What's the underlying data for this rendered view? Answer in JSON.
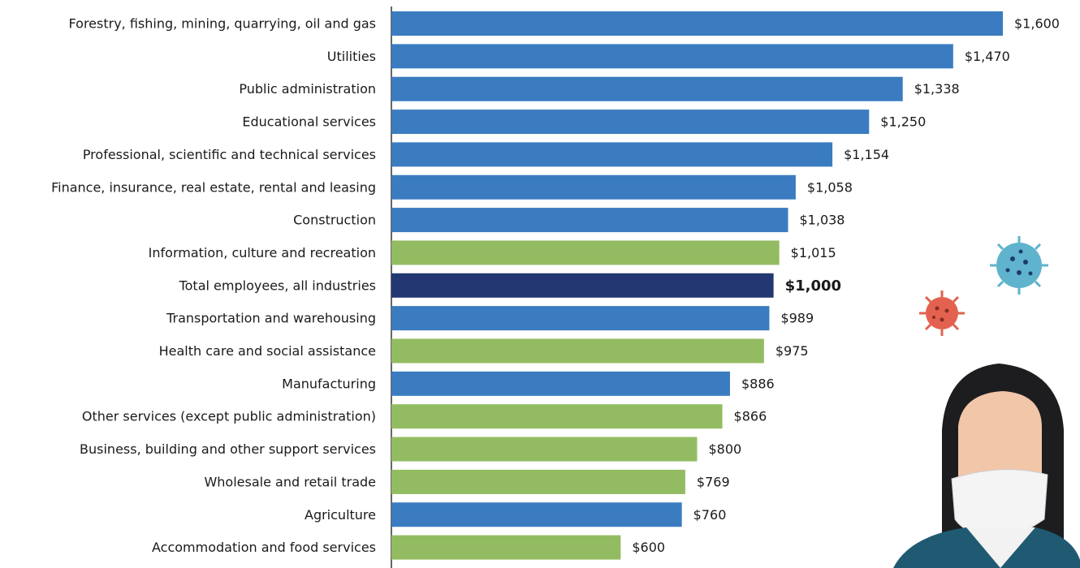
{
  "chart_data": {
    "type": "bar",
    "orientation": "horizontal",
    "categories": [
      "Forestry, fishing, mining, quarrying, oil and gas",
      "Utilities",
      "Public administration",
      "Educational services",
      "Professional, scientific and technical services",
      "Finance, insurance, real estate, rental and leasing",
      "Construction",
      "Information, culture and recreation",
      "Total employees, all industries",
      "Transportation and warehousing",
      "Health care and social assistance",
      "Manufacturing",
      "Other services (except public administration)",
      "Business, building and other support services",
      "Wholesale and retail trade",
      "Agriculture",
      "Accommodation and food services"
    ],
    "values": [
      1600,
      1470,
      1338,
      1250,
      1154,
      1058,
      1038,
      1015,
      1000,
      989,
      975,
      886,
      866,
      800,
      769,
      760,
      600
    ],
    "value_labels": [
      "$1,600",
      "$1,470",
      "$1,338",
      "$1,250",
      "$1,154",
      "$1,058",
      "$1,038",
      "$1,015",
      "$1,000",
      "$989",
      "$975",
      "$886",
      "$866",
      "$800",
      "$769",
      "$760",
      "$600"
    ],
    "colors": [
      "#3b7cc0",
      "#3b7cc0",
      "#3b7cc0",
      "#3b7cc0",
      "#3b7cc0",
      "#3b7cc0",
      "#3b7cc0",
      "#93bc62",
      "#233872",
      "#3b7cc0",
      "#93bc62",
      "#3b7cc0",
      "#93bc62",
      "#93bc62",
      "#93bc62",
      "#3b7cc0",
      "#93bc62"
    ],
    "xlim": [
      0,
      1600
    ]
  }
}
